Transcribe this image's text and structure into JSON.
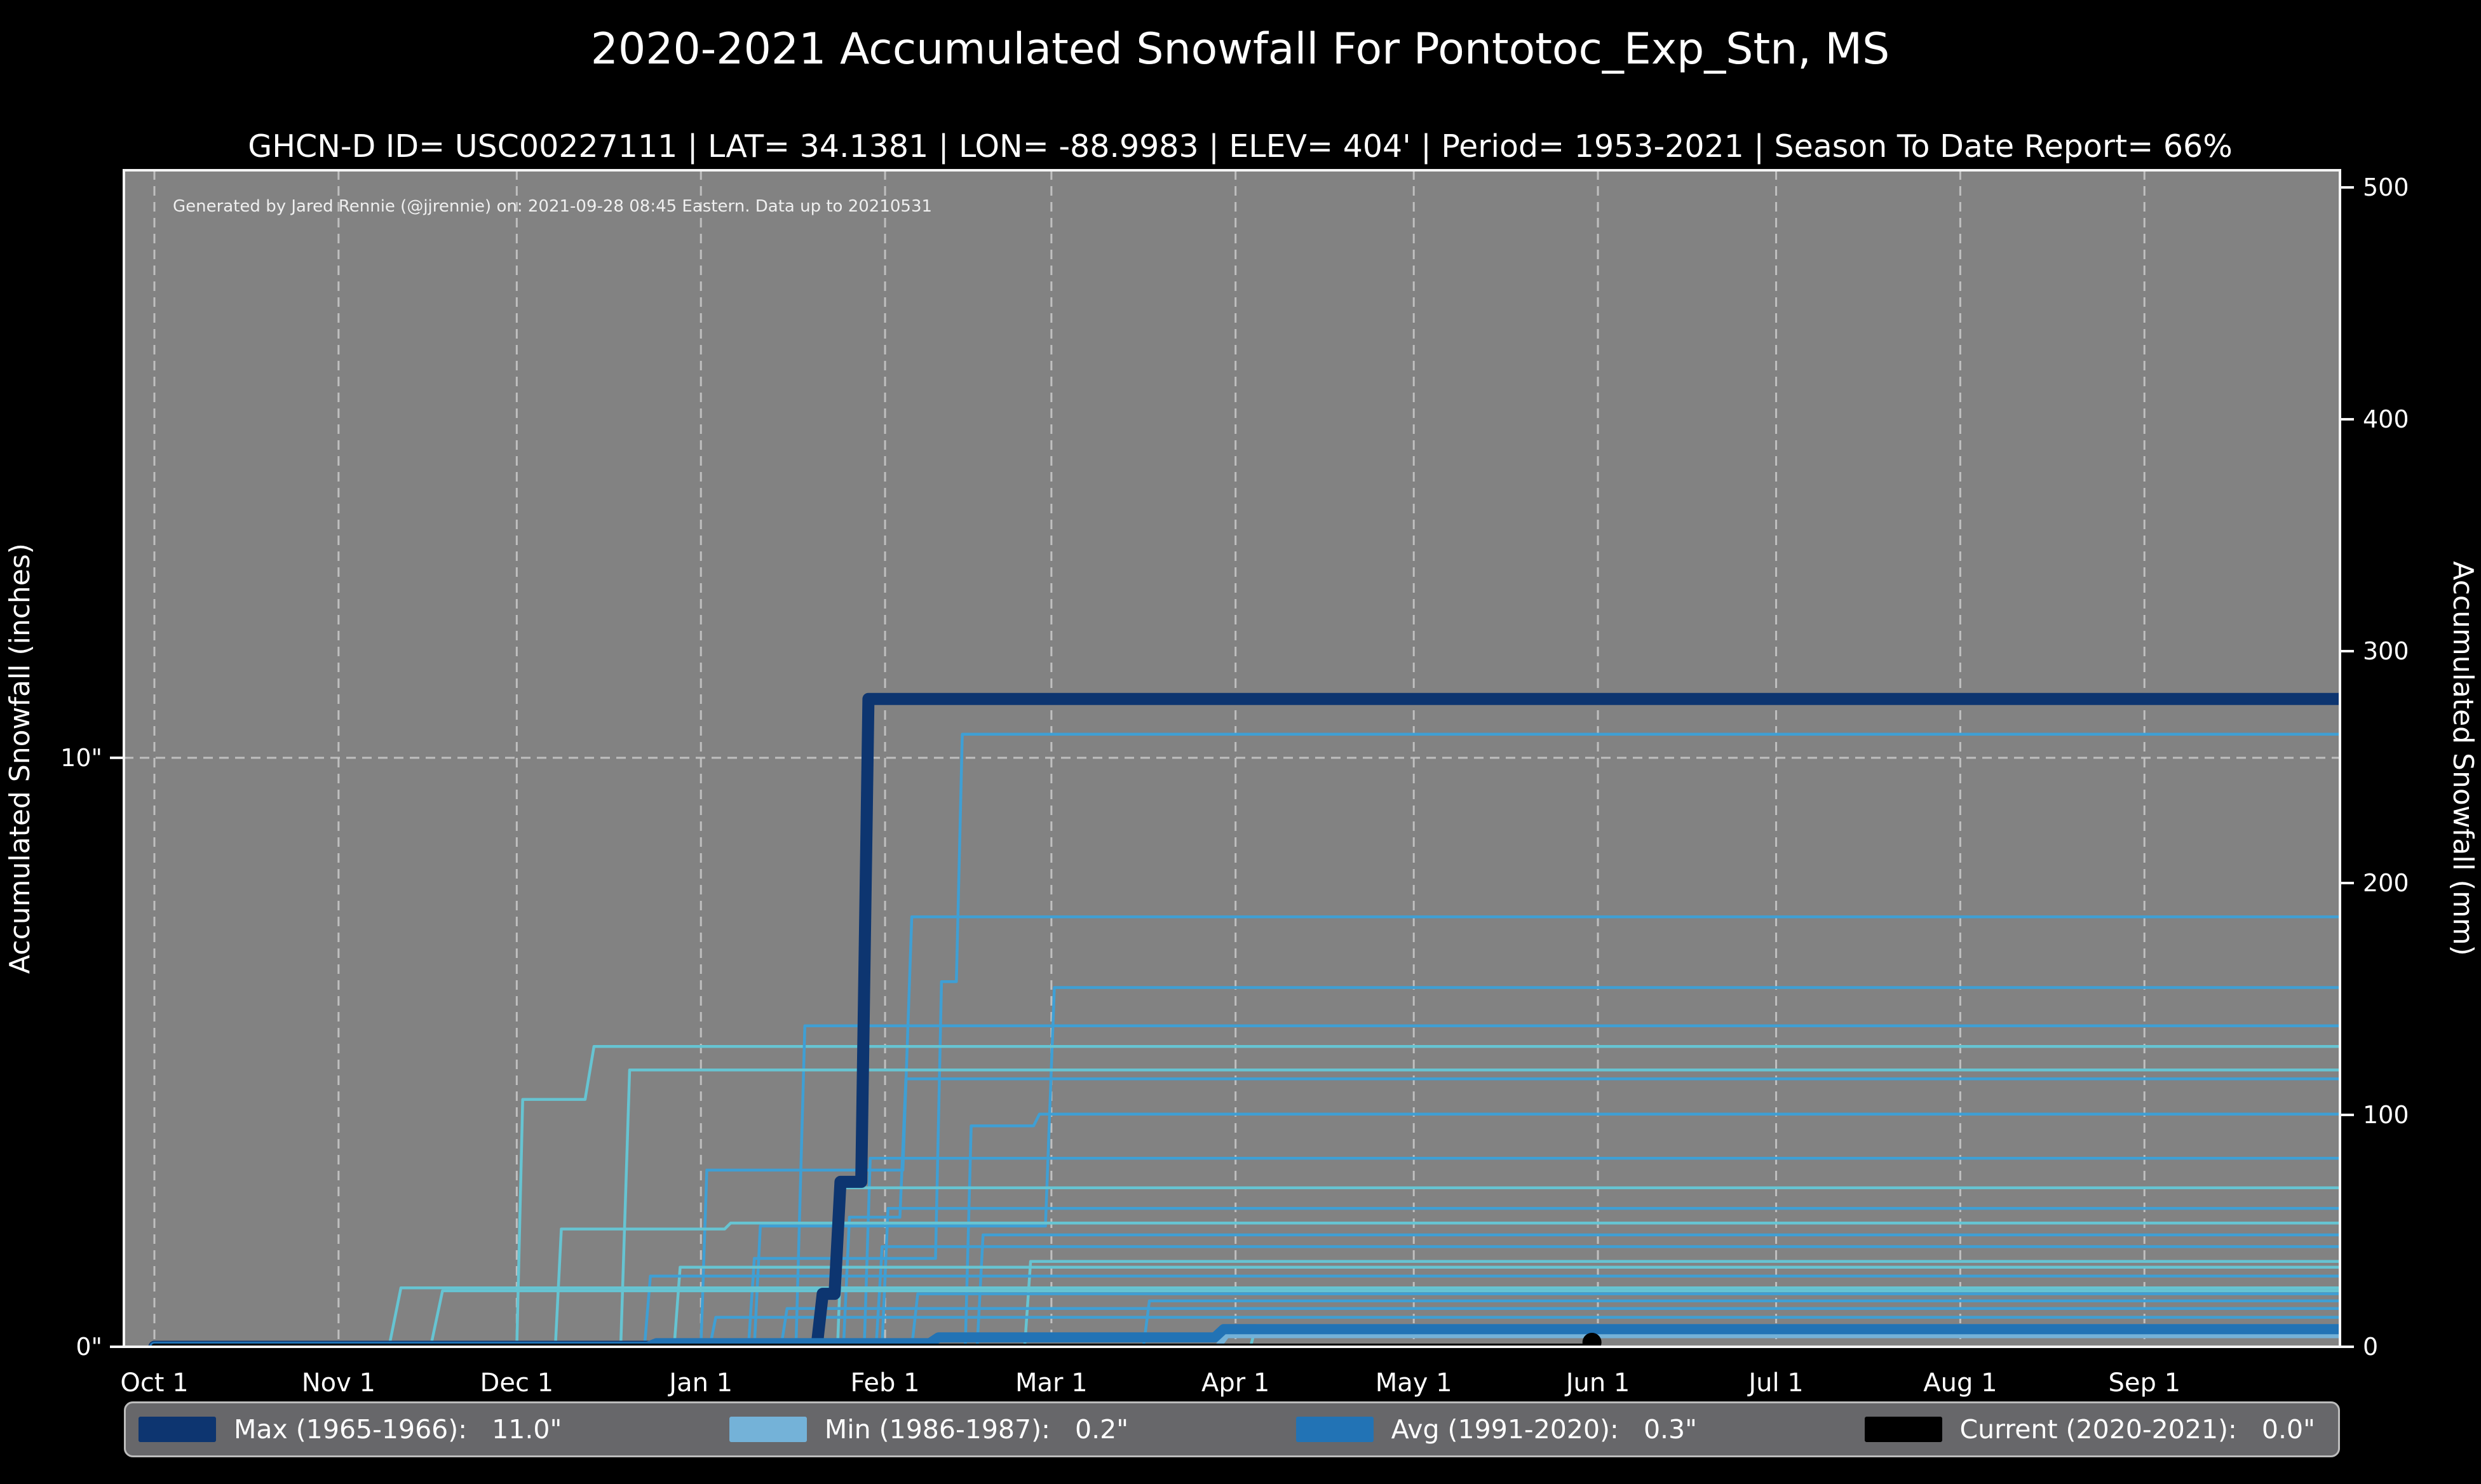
{
  "header": {
    "title": "2020-2021 Accumulated Snowfall For Pontotoc_Exp_Stn, MS",
    "subtitle": "GHCN-D ID= USC00227111 | LAT= 34.1381 | LON= -88.9983 | ELEV= 404' | Period= 1953-2021 | Season To Date Report= 66%"
  },
  "watermark": "Generated by Jared Rennie (@jjrennie) on: 2021-09-28 08:45 Eastern. Data up to 20210531",
  "axes": {
    "left_label": "Accumulated Snowfall (inches)",
    "right_label": "Accumulated Snowfall (mm)",
    "left_ticks": [
      {
        "label": "0\"",
        "inches": 0
      },
      {
        "label": "10\"",
        "inches": 10
      }
    ],
    "right_ticks_mm": [
      0,
      100,
      200,
      300,
      400,
      500
    ],
    "x_ticks": [
      "Oct 1",
      "Nov 1",
      "Dec 1",
      "Jan 1",
      "Feb 1",
      "Mar 1",
      "Apr 1",
      "May 1",
      "Jun 1",
      "Jul 1",
      "Aug 1",
      "Sep 1"
    ]
  },
  "legend": [
    {
      "name": "Max (1965-1966):",
      "value": "11.0\"",
      "color": "#0d3570"
    },
    {
      "name": "Min (1986-1987):",
      "value": "0.2\"",
      "color": "#74b2d8"
    },
    {
      "name": "Avg (1991-2020):",
      "value": "0.3\"",
      "color": "#2273b5"
    },
    {
      "name": "Current (2020-2021):",
      "value": "0.0\"",
      "color": "#000000"
    }
  ],
  "colors": {
    "figure_bg": "#000000",
    "plot_bg": "#828282",
    "grid": "#c6c6c6",
    "spine": "#f5f5f5",
    "legend_bg": "#67676a",
    "legend_border": "#bdbdbd",
    "season_a": "#3f9fd4",
    "season_b": "#66c4d2"
  },
  "chart_data": {
    "type": "line",
    "title": "2020-2021 Accumulated Snowfall For Pontotoc_Exp_Stn, MS",
    "x_unit": "days since Oct 1",
    "x_tick_days": [
      0,
      31,
      61,
      92,
      123,
      151,
      182,
      212,
      243,
      273,
      304,
      335
    ],
    "xlim_days": [
      -5.2,
      368
    ],
    "ylim_mm": [
      0,
      507
    ],
    "gridline_inches": [
      10
    ],
    "grid": "dashed, monthly verticals + 10-inch horizontal",
    "legend_position": "bottom, full-width bar",
    "main_series": [
      {
        "name": "Max (1965-1966)",
        "total_inches": 11.0,
        "color": "#0d3570",
        "width": 19,
        "points_day_in": [
          [
            0,
            0
          ],
          [
            111.5,
            0
          ],
          [
            112.5,
            0.9
          ],
          [
            114.5,
            0.9
          ],
          [
            115.5,
            2.8
          ],
          [
            119,
            2.8
          ],
          [
            120.2,
            11.0
          ],
          [
            368,
            11.0
          ]
        ]
      },
      {
        "name": "Min (1986-1987)",
        "total_inches": 0.2,
        "color": "#74b2d8",
        "width": 10,
        "points_day_in": [
          [
            0,
            0
          ],
          [
            179,
            0
          ],
          [
            180.5,
            0.2
          ],
          [
            368,
            0.2
          ]
        ]
      },
      {
        "name": "Avg (1991-2020)",
        "total_inches": 0.3,
        "color": "#2273b5",
        "width": 16,
        "points_day_in": [
          [
            0,
            0
          ],
          [
            83,
            0
          ],
          [
            84.5,
            0.06
          ],
          [
            130.5,
            0.06
          ],
          [
            132,
            0.16
          ],
          [
            178.5,
            0.16
          ],
          [
            180,
            0.3
          ],
          [
            368,
            0.3
          ]
        ]
      },
      {
        "name": "Current (2020-2021)",
        "total_inches": 0.0,
        "color": "#000000",
        "width": 10,
        "points_day_in": [
          [
            0,
            0
          ],
          [
            242,
            0
          ]
        ],
        "end_marker_day": 242,
        "end_marker_inches": 0
      }
    ],
    "historical_seasons": [
      {
        "shade": "season_a",
        "total_inches": 10.4,
        "points_day_in": [
          [
            0,
            0
          ],
          [
            100,
            0
          ],
          [
            101,
            1.5
          ],
          [
            131.5,
            1.5
          ],
          [
            132.5,
            6.2
          ],
          [
            135,
            6.2
          ],
          [
            136,
            10.4
          ],
          [
            368,
            10.4
          ]
        ]
      },
      {
        "shade": "season_a",
        "total_inches": 7.3,
        "points_day_in": [
          [
            0,
            0
          ],
          [
            92,
            0
          ],
          [
            93,
            3.0
          ],
          [
            126,
            3.0
          ],
          [
            127.5,
            7.3
          ],
          [
            368,
            7.3
          ]
        ]
      },
      {
        "shade": "season_a",
        "total_inches": 6.1,
        "points_day_in": [
          [
            0,
            0
          ],
          [
            101,
            0
          ],
          [
            102,
            2.05
          ],
          [
            150,
            2.05
          ],
          [
            151.5,
            6.1
          ],
          [
            368,
            6.1
          ]
        ]
      },
      {
        "shade": "season_b",
        "total_inches": 5.1,
        "points_day_in": [
          [
            0,
            0
          ],
          [
            61,
            0
          ],
          [
            62,
            4.2
          ],
          [
            72.5,
            4.2
          ],
          [
            74,
            5.1
          ],
          [
            368,
            5.1
          ]
        ]
      },
      {
        "shade": "season_a",
        "total_inches": 5.45,
        "points_day_in": [
          [
            0,
            0
          ],
          [
            108,
            0
          ],
          [
            109.5,
            5.45
          ],
          [
            368,
            5.45
          ]
        ]
      },
      {
        "shade": "season_a",
        "total_inches": 4.55,
        "points_day_in": [
          [
            0,
            0
          ],
          [
            116,
            0
          ],
          [
            117,
            2.2
          ],
          [
            125.5,
            2.2
          ],
          [
            126.5,
            4.55
          ],
          [
            368,
            4.55
          ]
        ]
      },
      {
        "shade": "season_b",
        "total_inches": 4.7,
        "points_day_in": [
          [
            0,
            0
          ],
          [
            78.5,
            0
          ],
          [
            80,
            4.7
          ],
          [
            368,
            4.7
          ]
        ]
      },
      {
        "shade": "season_a",
        "total_inches": 3.95,
        "points_day_in": [
          [
            0,
            0
          ],
          [
            136.5,
            0
          ],
          [
            137.5,
            3.75
          ],
          [
            148,
            3.75
          ],
          [
            149,
            3.95
          ],
          [
            368,
            3.95
          ]
        ]
      },
      {
        "shade": "season_a",
        "total_inches": 3.2,
        "points_day_in": [
          [
            0,
            0
          ],
          [
            119.5,
            0
          ],
          [
            120.5,
            3.2
          ],
          [
            368,
            3.2
          ]
        ]
      },
      {
        "shade": "season_b",
        "total_inches": 2.7,
        "points_day_in": [
          [
            0,
            0
          ],
          [
            115,
            0
          ],
          [
            116,
            2.7
          ],
          [
            368,
            2.7
          ]
        ]
      },
      {
        "shade": "season_a",
        "total_inches": 2.35,
        "points_day_in": [
          [
            0,
            0
          ],
          [
            122.5,
            0
          ],
          [
            123.5,
            2.35
          ],
          [
            368,
            2.35
          ]
        ]
      },
      {
        "shade": "season_b",
        "total_inches": 2.1,
        "points_day_in": [
          [
            0,
            0
          ],
          [
            67.5,
            0
          ],
          [
            68.5,
            2.0
          ],
          [
            96,
            2.0
          ],
          [
            97,
            2.1
          ],
          [
            368,
            2.1
          ]
        ]
      },
      {
        "shade": "season_a",
        "total_inches": 1.9,
        "points_day_in": [
          [
            0,
            0
          ],
          [
            138.5,
            0
          ],
          [
            139.5,
            1.9
          ],
          [
            368,
            1.9
          ]
        ]
      },
      {
        "shade": "season_a",
        "total_inches": 1.7,
        "points_day_in": [
          [
            0,
            0
          ],
          [
            121.5,
            0
          ],
          [
            122.5,
            1.7
          ],
          [
            368,
            1.7
          ]
        ]
      },
      {
        "shade": "season_b",
        "total_inches": 1.45,
        "points_day_in": [
          [
            0,
            0
          ],
          [
            146.5,
            0
          ],
          [
            147.5,
            1.45
          ],
          [
            368,
            1.45
          ]
        ]
      },
      {
        "shade": "season_b",
        "total_inches": 1.35,
        "points_day_in": [
          [
            0,
            0
          ],
          [
            87.5,
            0
          ],
          [
            88.5,
            1.35
          ],
          [
            368,
            1.35
          ]
        ]
      },
      {
        "shade": "season_a",
        "total_inches": 1.2,
        "points_day_in": [
          [
            0,
            0
          ],
          [
            82.5,
            0
          ],
          [
            83.5,
            1.2
          ],
          [
            368,
            1.2
          ]
        ]
      },
      {
        "shade": "season_b",
        "total_inches": 1.0,
        "points_day_in": [
          [
            0,
            0
          ],
          [
            39.5,
            0
          ],
          [
            41.5,
            1.0
          ],
          [
            368,
            1.0
          ]
        ]
      },
      {
        "shade": "season_b",
        "total_inches": 0.95,
        "points_day_in": [
          [
            0,
            0
          ],
          [
            46.5,
            0
          ],
          [
            48.5,
            0.95
          ],
          [
            368,
            0.95
          ]
        ]
      },
      {
        "shade": "season_a",
        "total_inches": 0.9,
        "points_day_in": [
          [
            0,
            0
          ],
          [
            127.5,
            0
          ],
          [
            128.5,
            0.9
          ],
          [
            368,
            0.9
          ]
        ]
      },
      {
        "shade": "season_a",
        "total_inches": 0.78,
        "points_day_in": [
          [
            0,
            0
          ],
          [
            166.5,
            0
          ],
          [
            167.5,
            0.78
          ],
          [
            368,
            0.78
          ]
        ]
      },
      {
        "shade": "season_a",
        "total_inches": 0.65,
        "points_day_in": [
          [
            0,
            0
          ],
          [
            105.5,
            0
          ],
          [
            106.5,
            0.65
          ],
          [
            368,
            0.65
          ]
        ]
      },
      {
        "shade": "season_a",
        "total_inches": 0.5,
        "points_day_in": [
          [
            0,
            0
          ],
          [
            93.5,
            0
          ],
          [
            94.5,
            0.5
          ],
          [
            368,
            0.5
          ]
        ]
      },
      {
        "shade": "season_b",
        "total_inches": 0.36,
        "points_day_in": [
          [
            0,
            0
          ],
          [
            184.5,
            0
          ],
          [
            185.5,
            0.36
          ],
          [
            368,
            0.36
          ]
        ]
      }
    ]
  }
}
